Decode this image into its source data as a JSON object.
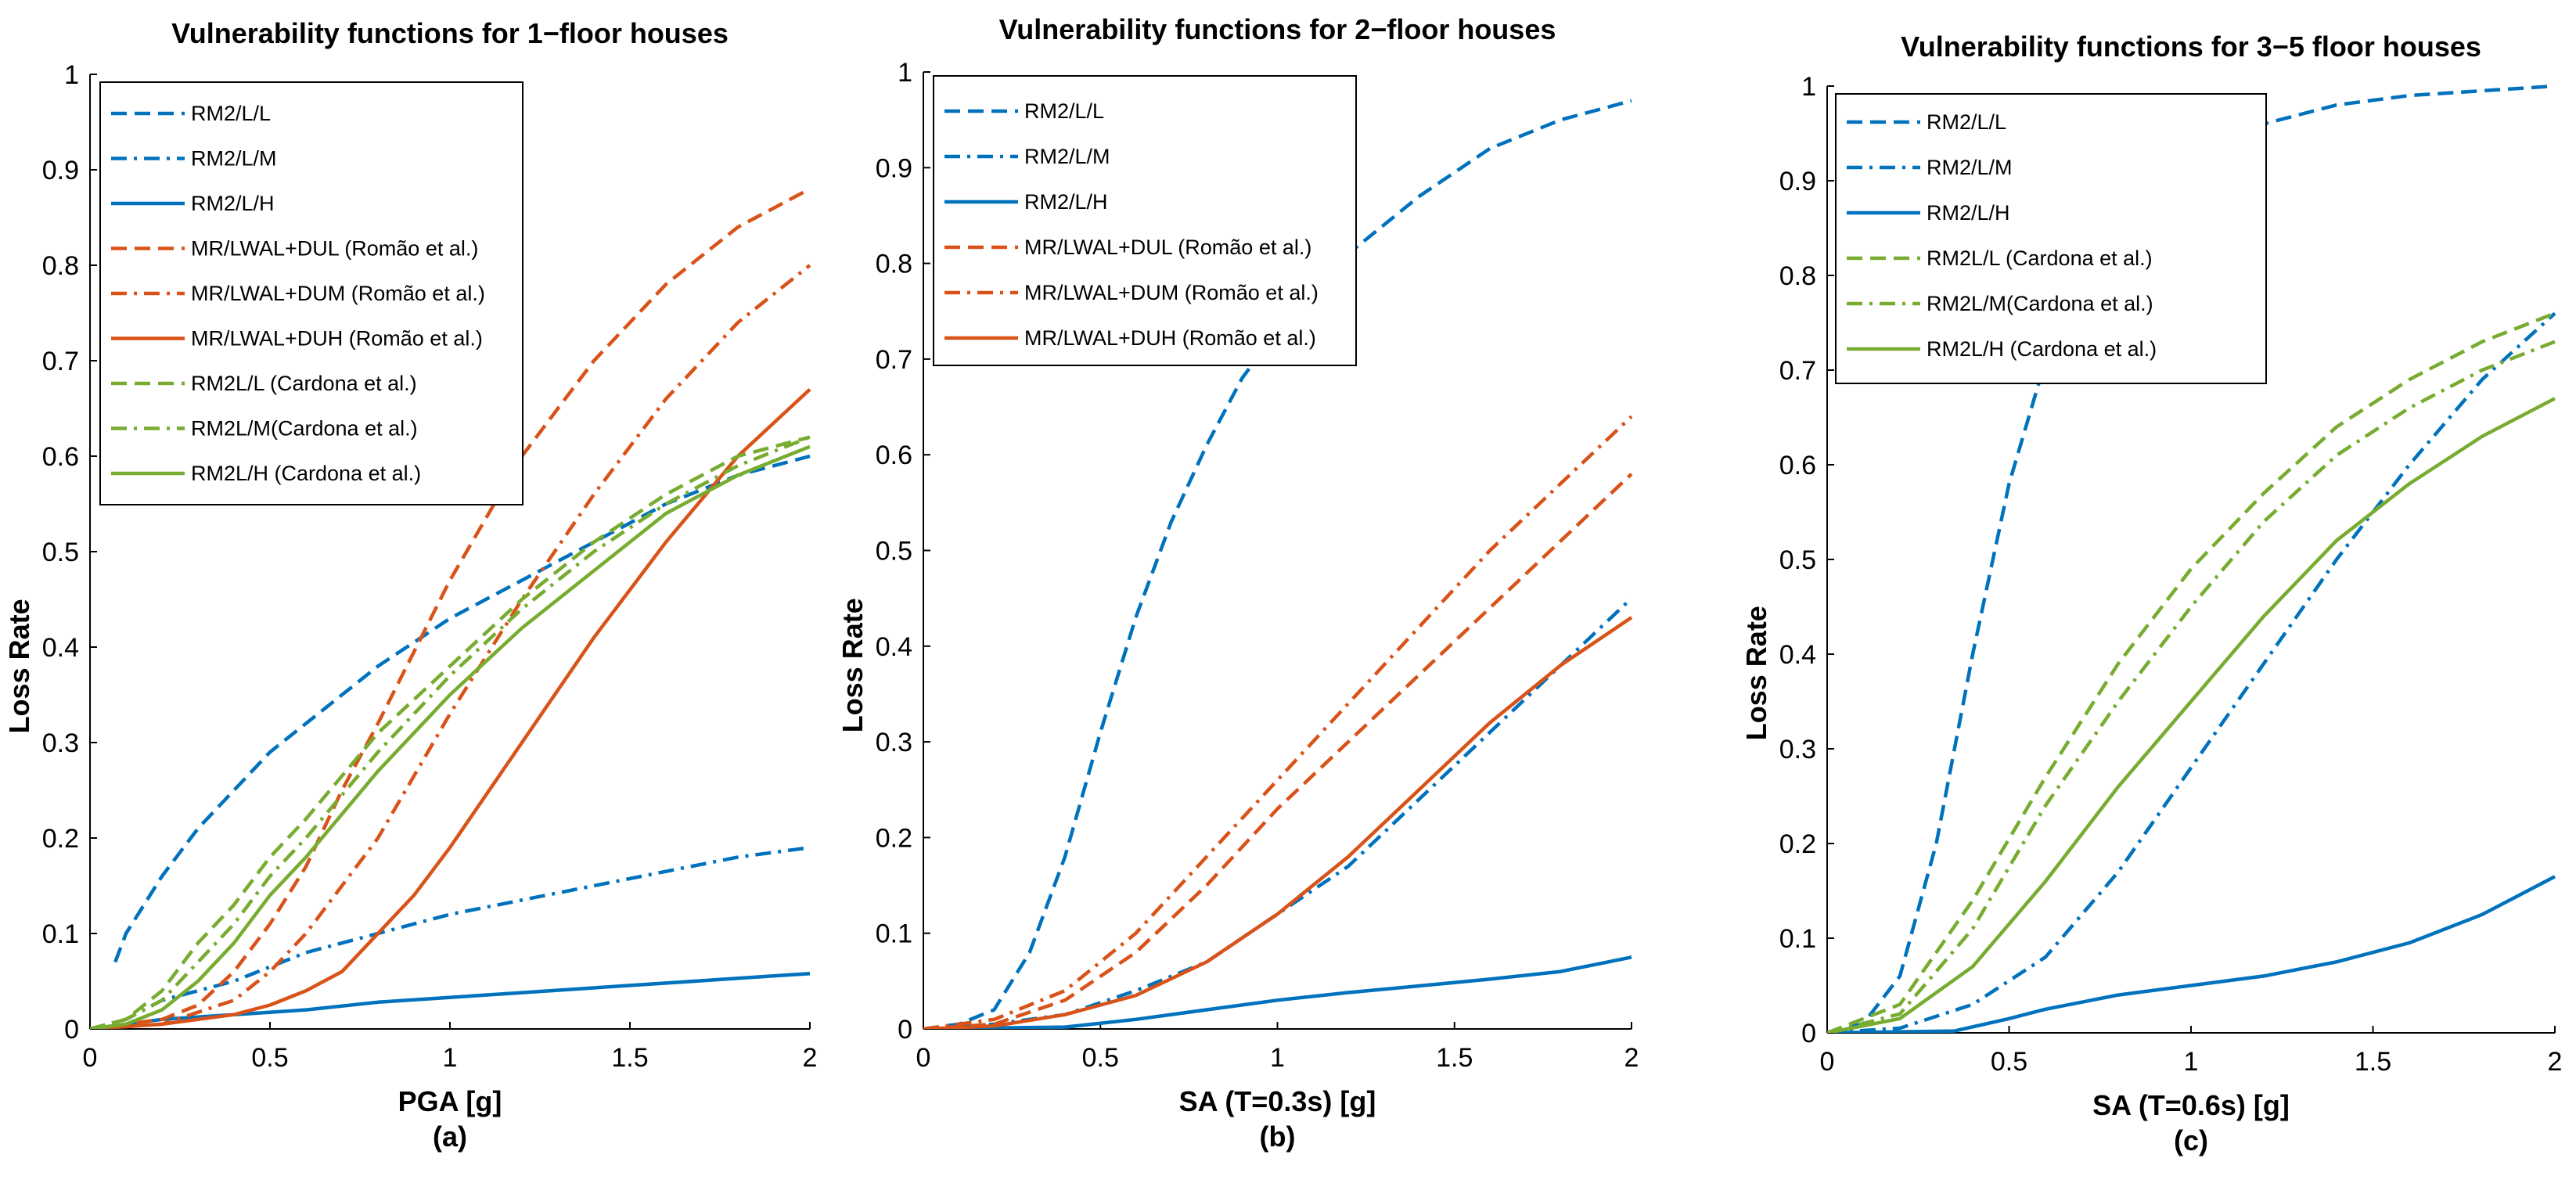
{
  "chart_data": [
    {
      "type": "line",
      "title": "Vulnerability functions for 1−floor houses",
      "xlabel": "PGA [g]",
      "ylabel": "Loss Rate",
      "caption": "(a)",
      "xlim": [
        0,
        2
      ],
      "ylim": [
        0,
        1
      ],
      "xticks": [
        "0",
        "0.5",
        "1",
        "1.5",
        "2"
      ],
      "yticks": [
        "0",
        "0.1",
        "0.2",
        "0.3",
        "0.4",
        "0.5",
        "0.6",
        "0.7",
        "0.8",
        "0.9",
        "1"
      ],
      "series": [
        {
          "name": "RM2/L/L",
          "color": "#0072BD",
          "style": "dash",
          "x": [
            0.07,
            0.1,
            0.2,
            0.3,
            0.4,
            0.5,
            0.6,
            0.8,
            1.0,
            1.2,
            1.4,
            1.6,
            1.8,
            2.0
          ],
          "y": [
            0.07,
            0.1,
            0.16,
            0.21,
            0.25,
            0.29,
            0.32,
            0.38,
            0.43,
            0.47,
            0.51,
            0.55,
            0.58,
            0.6
          ]
        },
        {
          "name": "RM2/L/M",
          "color": "#0072BD",
          "style": "dashdot",
          "x": [
            0,
            0.1,
            0.2,
            0.4,
            0.6,
            0.8,
            1.0,
            1.2,
            1.4,
            1.6,
            1.8,
            2.0
          ],
          "y": [
            0,
            0.01,
            0.03,
            0.05,
            0.08,
            0.1,
            0.12,
            0.135,
            0.15,
            0.165,
            0.18,
            0.19
          ]
        },
        {
          "name": "RM2/L/H",
          "color": "#0072BD",
          "style": "solid",
          "x": [
            0,
            0.2,
            0.4,
            0.6,
            0.8,
            1.0,
            1.2,
            1.4,
            1.6,
            1.8,
            2.0
          ],
          "y": [
            0,
            0.01,
            0.015,
            0.02,
            0.028,
            0.033,
            0.038,
            0.043,
            0.048,
            0.053,
            0.058
          ]
        },
        {
          "name": "MR/LWAL+DUL (Romão et al.)",
          "color": "#D95319",
          "style": "dash",
          "x": [
            0,
            0.2,
            0.3,
            0.4,
            0.5,
            0.6,
            0.7,
            0.8,
            1.0,
            1.2,
            1.4,
            1.6,
            1.8,
            2.0
          ],
          "y": [
            0,
            0.01,
            0.025,
            0.06,
            0.11,
            0.17,
            0.25,
            0.32,
            0.47,
            0.6,
            0.7,
            0.78,
            0.84,
            0.88
          ]
        },
        {
          "name": "MR/LWAL+DUM (Romão et al.)",
          "color": "#D95319",
          "style": "dashdot",
          "x": [
            0,
            0.2,
            0.4,
            0.5,
            0.6,
            0.7,
            0.8,
            1.0,
            1.2,
            1.4,
            1.6,
            1.8,
            2.0
          ],
          "y": [
            0,
            0.005,
            0.03,
            0.06,
            0.1,
            0.15,
            0.2,
            0.33,
            0.45,
            0.56,
            0.66,
            0.74,
            0.8
          ]
        },
        {
          "name": "MR/LWAL+DUH (Romão et al.)",
          "color": "#D95319",
          "style": "solid",
          "x": [
            0,
            0.2,
            0.4,
            0.5,
            0.6,
            0.7,
            0.8,
            0.9,
            1.0,
            1.2,
            1.4,
            1.6,
            1.8,
            2.0
          ],
          "y": [
            0,
            0.005,
            0.015,
            0.025,
            0.04,
            0.06,
            0.1,
            0.14,
            0.19,
            0.3,
            0.41,
            0.51,
            0.6,
            0.67
          ]
        },
        {
          "name": "RM2L/L (Cardona et al.)",
          "color": "#77AC30",
          "style": "dash",
          "x": [
            0,
            0.1,
            0.2,
            0.3,
            0.4,
            0.5,
            0.6,
            0.8,
            1.0,
            1.2,
            1.4,
            1.6,
            1.8,
            2.0
          ],
          "y": [
            0,
            0.01,
            0.04,
            0.09,
            0.13,
            0.18,
            0.22,
            0.31,
            0.38,
            0.45,
            0.51,
            0.56,
            0.6,
            0.62
          ]
        },
        {
          "name": "RM2L/M(Cardona et al.)",
          "color": "#77AC30",
          "style": "dashdot",
          "x": [
            0,
            0.1,
            0.2,
            0.3,
            0.4,
            0.5,
            0.6,
            0.8,
            1.0,
            1.2,
            1.4,
            1.6,
            1.8,
            2.0
          ],
          "y": [
            0,
            0.01,
            0.03,
            0.07,
            0.11,
            0.16,
            0.2,
            0.29,
            0.37,
            0.44,
            0.5,
            0.55,
            0.59,
            0.62
          ]
        },
        {
          "name": "RM2L/H (Cardona et al.)",
          "color": "#77AC30",
          "style": "solid",
          "x": [
            0,
            0.1,
            0.2,
            0.3,
            0.4,
            0.5,
            0.6,
            0.8,
            1.0,
            1.2,
            1.4,
            1.6,
            1.8,
            2.0
          ],
          "y": [
            0,
            0.005,
            0.02,
            0.05,
            0.09,
            0.14,
            0.18,
            0.27,
            0.35,
            0.42,
            0.48,
            0.54,
            0.58,
            0.61
          ]
        }
      ],
      "legend": "top-left"
    },
    {
      "type": "line",
      "title": "Vulnerability functions for 2−floor houses",
      "xlabel": "SA (T=0.3s) [g]",
      "ylabel": "Loss Rate",
      "caption": "(b)",
      "xlim": [
        0,
        2
      ],
      "ylim": [
        0,
        1
      ],
      "xticks": [
        "0",
        "0.5",
        "1",
        "1.5",
        "2"
      ],
      "yticks": [
        "0",
        "0.1",
        "0.2",
        "0.3",
        "0.4",
        "0.5",
        "0.6",
        "0.7",
        "0.8",
        "0.9",
        "1"
      ],
      "series": [
        {
          "name": "RM2/L/L",
          "color": "#0072BD",
          "style": "dash",
          "x": [
            0,
            0.1,
            0.2,
            0.3,
            0.4,
            0.5,
            0.6,
            0.7,
            0.8,
            0.9,
            1.0,
            1.2,
            1.4,
            1.6,
            1.8,
            2.0
          ],
          "y": [
            0,
            0.005,
            0.02,
            0.08,
            0.18,
            0.31,
            0.43,
            0.53,
            0.61,
            0.68,
            0.73,
            0.81,
            0.87,
            0.92,
            0.95,
            0.97
          ]
        },
        {
          "name": "RM2/L/M",
          "color": "#0072BD",
          "style": "dashdot",
          "x": [
            0,
            0.2,
            0.4,
            0.6,
            0.8,
            1.0,
            1.2,
            1.4,
            1.6,
            1.8,
            2.0
          ],
          "y": [
            0,
            0.005,
            0.015,
            0.04,
            0.07,
            0.12,
            0.17,
            0.24,
            0.31,
            0.38,
            0.45
          ]
        },
        {
          "name": "RM2/L/H",
          "color": "#0072BD",
          "style": "solid",
          "x": [
            0,
            0.4,
            0.6,
            0.8,
            1.0,
            1.2,
            1.4,
            1.6,
            1.8,
            2.0
          ],
          "y": [
            0,
            0.002,
            0.01,
            0.02,
            0.03,
            0.038,
            0.045,
            0.052,
            0.06,
            0.075
          ]
        },
        {
          "name": "MR/LWAL+DUL (Romão et al.)",
          "color": "#D95319",
          "style": "dash",
          "x": [
            0,
            0.2,
            0.4,
            0.6,
            0.8,
            1.0,
            1.2,
            1.4,
            1.6,
            1.8,
            2.0
          ],
          "y": [
            0,
            0.005,
            0.03,
            0.08,
            0.15,
            0.23,
            0.3,
            0.37,
            0.44,
            0.51,
            0.58
          ]
        },
        {
          "name": "MR/LWAL+DUM (Romão et al.)",
          "color": "#D95319",
          "style": "dashdot",
          "x": [
            0,
            0.2,
            0.4,
            0.6,
            0.8,
            1.0,
            1.2,
            1.4,
            1.6,
            1.8,
            2.0
          ],
          "y": [
            0,
            0.01,
            0.04,
            0.1,
            0.18,
            0.26,
            0.34,
            0.42,
            0.5,
            0.57,
            0.64
          ]
        },
        {
          "name": "MR/LWAL+DUH (Romão et al.)",
          "color": "#D95319",
          "style": "solid",
          "x": [
            0,
            0.2,
            0.4,
            0.6,
            0.8,
            1.0,
            1.2,
            1.4,
            1.6,
            1.8,
            2.0
          ],
          "y": [
            0,
            0.003,
            0.015,
            0.035,
            0.07,
            0.12,
            0.18,
            0.25,
            0.32,
            0.38,
            0.43
          ]
        }
      ],
      "legend": "top-left"
    },
    {
      "type": "line",
      "title": "Vulnerability functions for 3−5 floor houses",
      "xlabel": "SA (T=0.6s) [g]",
      "ylabel": "Loss Rate",
      "caption": "(c)",
      "xlim": [
        0,
        2
      ],
      "ylim": [
        0,
        1
      ],
      "xticks": [
        "0",
        "0.5",
        "1",
        "1.5",
        "2"
      ],
      "yticks": [
        "0",
        "0.1",
        "0.2",
        "0.3",
        "0.4",
        "0.5",
        "0.6",
        "0.7",
        "0.8",
        "0.9",
        "1"
      ],
      "series": [
        {
          "name": "RM2/L/L",
          "color": "#0072BD",
          "style": "dash",
          "x": [
            0,
            0.1,
            0.2,
            0.3,
            0.4,
            0.5,
            0.6,
            0.7,
            0.8,
            0.9,
            1.0,
            1.2,
            1.4,
            1.6,
            1.8,
            2.0
          ],
          "y": [
            0,
            0.01,
            0.06,
            0.2,
            0.4,
            0.58,
            0.71,
            0.8,
            0.86,
            0.9,
            0.93,
            0.96,
            0.98,
            0.99,
            0.995,
            1.0
          ]
        },
        {
          "name": "RM2/L/M",
          "color": "#0072BD",
          "style": "dashdot",
          "x": [
            0,
            0.2,
            0.4,
            0.6,
            0.8,
            1.0,
            1.2,
            1.4,
            1.6,
            1.8,
            2.0
          ],
          "y": [
            0,
            0.005,
            0.03,
            0.08,
            0.17,
            0.28,
            0.39,
            0.5,
            0.6,
            0.69,
            0.76
          ]
        },
        {
          "name": "RM2/L/H",
          "color": "#0072BD",
          "style": "solid",
          "x": [
            0,
            0.35,
            0.5,
            0.6,
            0.8,
            1.0,
            1.2,
            1.4,
            1.6,
            1.8,
            2.0
          ],
          "y": [
            0,
            0.002,
            0.015,
            0.025,
            0.04,
            0.05,
            0.06,
            0.075,
            0.095,
            0.125,
            0.165
          ]
        },
        {
          "name": "RM2L/L (Cardona et al.)",
          "color": "#77AC30",
          "style": "dash",
          "x": [
            0,
            0.2,
            0.4,
            0.6,
            0.8,
            1.0,
            1.2,
            1.4,
            1.6,
            1.8,
            2.0
          ],
          "y": [
            0,
            0.03,
            0.14,
            0.27,
            0.39,
            0.49,
            0.57,
            0.64,
            0.69,
            0.73,
            0.76
          ]
        },
        {
          "name": "RM2L/M(Cardona et al.)",
          "color": "#77AC30",
          "style": "dashdot",
          "x": [
            0,
            0.2,
            0.4,
            0.6,
            0.8,
            1.0,
            1.2,
            1.4,
            1.6,
            1.8,
            2.0
          ],
          "y": [
            0,
            0.02,
            0.11,
            0.24,
            0.35,
            0.45,
            0.54,
            0.61,
            0.66,
            0.7,
            0.73
          ]
        },
        {
          "name": "RM2L/H (Cardona et al.)",
          "color": "#77AC30",
          "style": "solid",
          "x": [
            0,
            0.2,
            0.4,
            0.6,
            0.8,
            1.0,
            1.2,
            1.4,
            1.6,
            1.8,
            2.0
          ],
          "y": [
            0,
            0.015,
            0.07,
            0.16,
            0.26,
            0.35,
            0.44,
            0.52,
            0.58,
            0.63,
            0.67
          ]
        }
      ],
      "legend": "top-left"
    }
  ]
}
